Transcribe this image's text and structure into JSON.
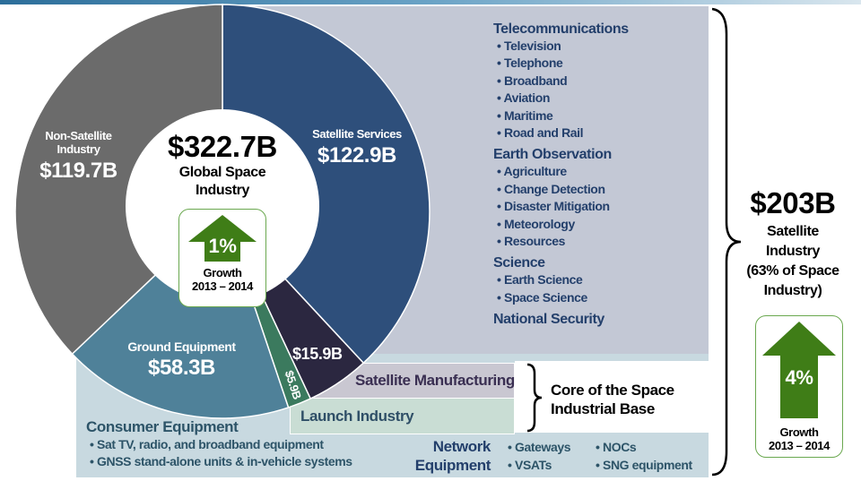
{
  "chart_data": {
    "type": "pie",
    "title": "Global Space Industry",
    "total": "$322.7B",
    "slices": [
      {
        "name": "Satellite Services",
        "label": "$122.9B",
        "value": 122.9,
        "color": "#2e4f7b"
      },
      {
        "name": "Satellite Manufacturing",
        "label": "$15.9B",
        "value": 15.9,
        "color": "#2b2740"
      },
      {
        "name": "Launch Industry",
        "label": "$5.9B",
        "value": 5.9,
        "color": "#3b7a5e"
      },
      {
        "name": "Ground Equipment",
        "label": "$58.3B",
        "value": 58.3,
        "color": "#4f8199"
      },
      {
        "name": "Non-Satellite Industry",
        "label": "$119.7B",
        "value": 119.7,
        "color": "#6b6b6b"
      }
    ]
  },
  "center": {
    "total": "$322.7B",
    "title": "Global Space Industry",
    "growth": "1%",
    "growth_label": "Growth",
    "growth_period": "2013 – 2014"
  },
  "labels": {
    "non_sat": "Non-Satellite Industry",
    "non_sat_val": "$119.7B",
    "sat_services": "Satellite Services",
    "sat_services_val": "$122.9B",
    "ground": "Ground Equipment",
    "ground_val": "$58.3B",
    "mfg_val": "$15.9B",
    "launch_val": "$5.9B"
  },
  "services": [
    {
      "heading": "Telecommunications",
      "items": [
        "Television",
        "Telephone",
        "Broadband",
        "Aviation",
        "Maritime",
        "Road and Rail"
      ]
    },
    {
      "heading": "Earth Observation",
      "items": [
        "Agriculture",
        "Change Detection",
        "Disaster Mitigation",
        "Meteorology",
        "Resources"
      ]
    },
    {
      "heading": "Science",
      "items": [
        "Earth Science",
        "Space Science"
      ]
    },
    {
      "heading": "National Security",
      "items": []
    }
  ],
  "core": {
    "mfg": "Satellite Manufacturing",
    "launch": "Launch Industry",
    "label": "Core of the Space Industrial Base"
  },
  "consumer": {
    "heading": "Consumer Equipment",
    "items": [
      "Sat TV, radio, and broadband equipment",
      "GNSS stand-alone units & in-vehicle systems"
    ]
  },
  "network": {
    "heading": "Network Equipment",
    "items": [
      "Gateways",
      "VSATs",
      "NOCs",
      "SNG equipment"
    ]
  },
  "satellite": {
    "total": "$203B",
    "title": "Satellite Industry",
    "share": "(63% of Space Industry)",
    "growth": "4%",
    "growth_label": "Growth",
    "growth_period": "2013 – 2014"
  }
}
